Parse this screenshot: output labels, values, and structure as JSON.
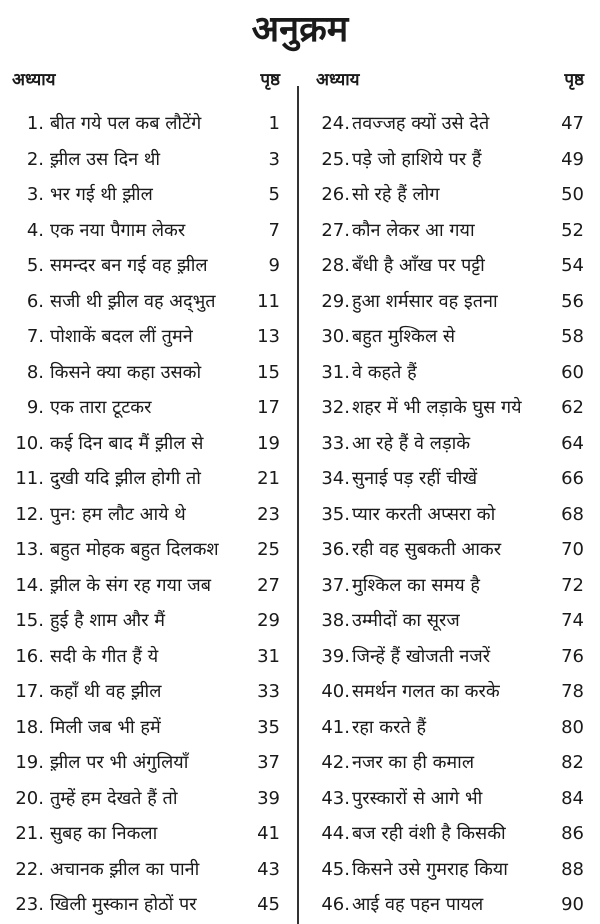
{
  "title": "अनुक्रम",
  "header": {
    "chapter": "अध्याय",
    "page": "पृष्ठ"
  },
  "left": [
    {
      "num": "1.",
      "title": "बीत गये पल कब लौटेंगे",
      "page": "1"
    },
    {
      "num": "2.",
      "title": "झ़ील उस दिन थी",
      "page": "3"
    },
    {
      "num": "3.",
      "title": "भर गई थी झ़ील",
      "page": "5"
    },
    {
      "num": "4.",
      "title": "एक नया पैगाम लेकर",
      "page": "7"
    },
    {
      "num": "5.",
      "title": "समन्दर बन गई वह झ़ील",
      "page": "9"
    },
    {
      "num": "6.",
      "title": "सजी थी झ़ील वह अद्‌भुत",
      "page": "11"
    },
    {
      "num": "7.",
      "title": "पोशाकें बदल लीं तुमने",
      "page": "13"
    },
    {
      "num": "8.",
      "title": "किसने क्या कहा उसको",
      "page": "15"
    },
    {
      "num": "9.",
      "title": "एक तारा टूटकर",
      "page": "17"
    },
    {
      "num": "10.",
      "title": "कई दिन बाद मैं झ़ील से",
      "page": "19"
    },
    {
      "num": "11.",
      "title": "दुखी यदि झ़ील होगी तो",
      "page": "21"
    },
    {
      "num": "12.",
      "title": "पुन: हम लौट आये थे",
      "page": "23"
    },
    {
      "num": "13.",
      "title": "बहुत मोहक बहुत दिलकश",
      "page": "25"
    },
    {
      "num": "14.",
      "title": "झ़ील के संग रह गया जब",
      "page": "27"
    },
    {
      "num": "15.",
      "title": "हुई है शाम और मैं",
      "page": "29"
    },
    {
      "num": "16.",
      "title": "सदी के गीत हैं ये",
      "page": "31"
    },
    {
      "num": "17.",
      "title": "कहाँ थी वह झ़ील",
      "page": "33"
    },
    {
      "num": "18.",
      "title": "मिली जब भी हमें",
      "page": "35"
    },
    {
      "num": "19.",
      "title": "झ़ील पर भी अंगुलियाँ",
      "page": "37"
    },
    {
      "num": "20.",
      "title": "तुम्हें हम देखते हैं तो",
      "page": "39"
    },
    {
      "num": "21.",
      "title": "सुबह का निकला",
      "page": "41"
    },
    {
      "num": "22.",
      "title": "अचानक झ़ील का पानी",
      "page": "43"
    },
    {
      "num": "23.",
      "title": "खिली मुस्कान होठों पर",
      "page": "45"
    }
  ],
  "right": [
    {
      "num": "24.",
      "title": "तवज्जह क्यों उसे देते",
      "page": "47"
    },
    {
      "num": "25.",
      "title": "पड़े जो हाशिये पर हैं",
      "page": "49"
    },
    {
      "num": "26.",
      "title": "सो रहे हैं लोग",
      "page": "50"
    },
    {
      "num": "27.",
      "title": "कौन लेकर आ गया",
      "page": "52"
    },
    {
      "num": "28.",
      "title": "बँधी है आँख पर पट्टी",
      "page": "54"
    },
    {
      "num": "29.",
      "title": "हुआ शर्मसार वह इतना",
      "page": "56"
    },
    {
      "num": "30.",
      "title": "बहुत मुश्किल से",
      "page": "58"
    },
    {
      "num": "31.",
      "title": "वे कहते हैं",
      "page": "60"
    },
    {
      "num": "32.",
      "title": "शहर में भी लड़ाके घुस गये",
      "page": "62"
    },
    {
      "num": "33.",
      "title": "आ रहे हैं वे लड़ाके",
      "page": "64"
    },
    {
      "num": "34.",
      "title": "सुनाई पड़ रहीं चीखें",
      "page": "66"
    },
    {
      "num": "35.",
      "title": "प्यार करती अप्सरा को",
      "page": "68"
    },
    {
      "num": "36.",
      "title": "रही वह सुबकती आकर",
      "page": "70"
    },
    {
      "num": "37.",
      "title": "मुश्किल का समय है",
      "page": "72"
    },
    {
      "num": "38.",
      "title": "उम्मीदों का सूरज",
      "page": "74"
    },
    {
      "num": "39.",
      "title": "जिन्हें हैं खोजती नजरें",
      "page": "76"
    },
    {
      "num": "40.",
      "title": "समर्थन गलत का करके",
      "page": "78"
    },
    {
      "num": "41.",
      "title": "रहा करते हैं",
      "page": "80"
    },
    {
      "num": "42.",
      "title": "नजर का ही कमाल",
      "page": "82"
    },
    {
      "num": "43.",
      "title": "पुरस्कारों से आगे भी",
      "page": "84"
    },
    {
      "num": "44.",
      "title": "बज रही वंशी है किसकी",
      "page": "86"
    },
    {
      "num": "45.",
      "title": "किसने उसे गुमराह किया",
      "page": "88"
    },
    {
      "num": "46.",
      "title": "आई वह पहन पायल",
      "page": "90"
    }
  ]
}
